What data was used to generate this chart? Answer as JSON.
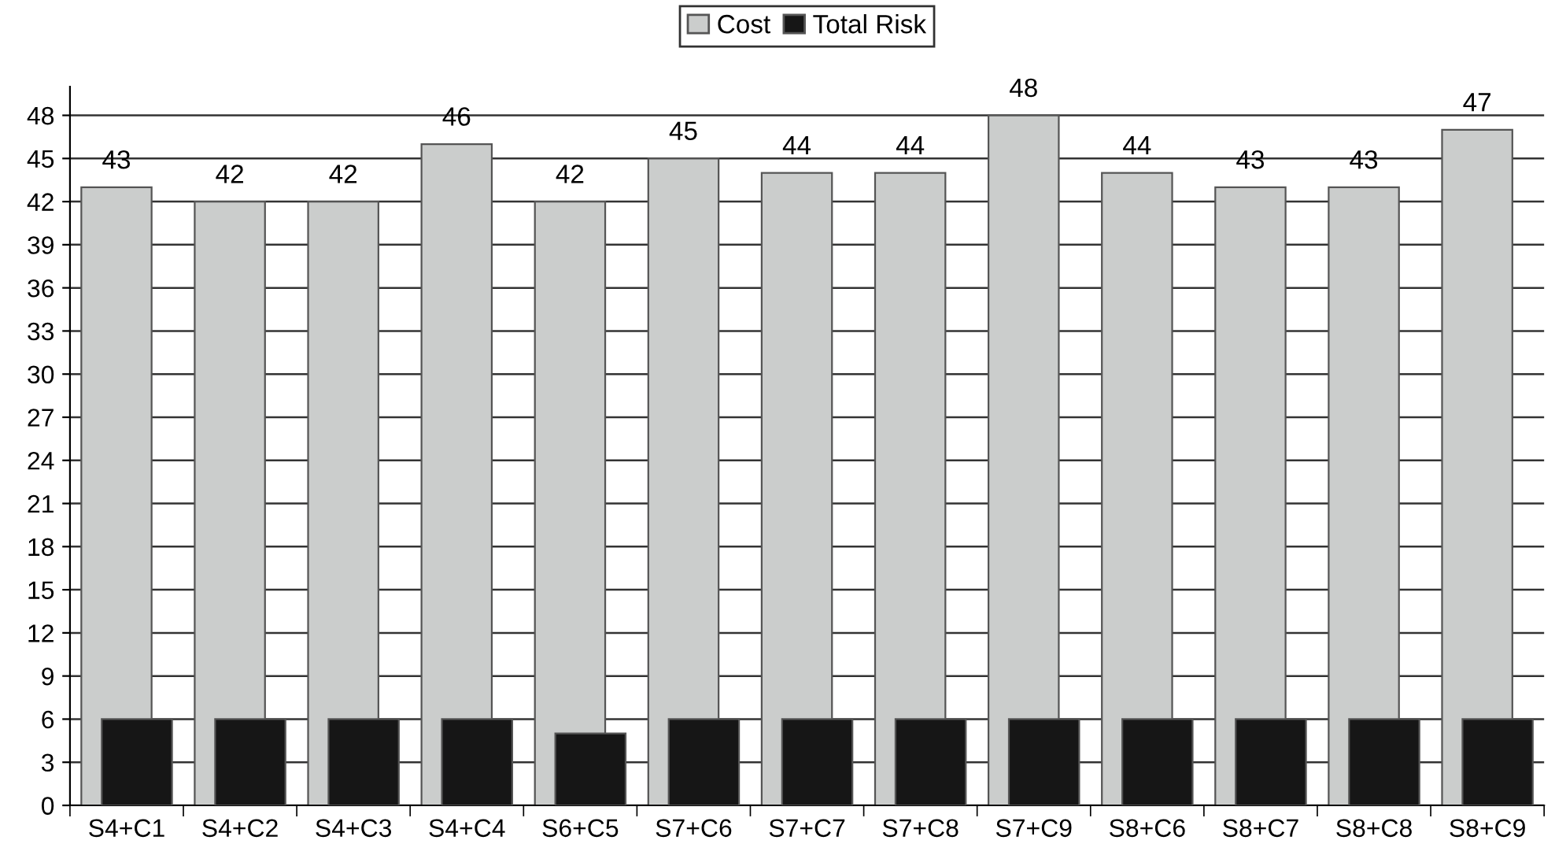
{
  "chart_data": {
    "type": "bar",
    "categories": [
      "S4+C1",
      "S4+C2",
      "S4+C3",
      "S4+C4",
      "S6+C5",
      "S7+C6",
      "S7+C7",
      "S7+C8",
      "S7+C9",
      "S8+C6",
      "S8+C7",
      "S8+C8",
      "S8+C9"
    ],
    "series": [
      {
        "name": "Cost",
        "color": "#cbcdcc",
        "values": [
          43,
          42,
          42,
          46,
          42,
          45,
          44,
          44,
          48,
          44,
          43,
          43,
          47
        ],
        "value_labels": [
          "43",
          "42",
          "42",
          "46",
          "42",
          "45",
          "44",
          "44",
          "48",
          "44",
          "43",
          "43",
          "47"
        ]
      },
      {
        "name": "Total Risk",
        "color": "#161616",
        "values": [
          6,
          6,
          6,
          6,
          5,
          6,
          6,
          6,
          6,
          6,
          6,
          6,
          6
        ]
      }
    ],
    "ylim": [
      0,
      50
    ],
    "yticks": [
      0,
      3,
      6,
      9,
      12,
      15,
      18,
      21,
      24,
      27,
      30,
      33,
      36,
      39,
      42,
      45,
      48
    ],
    "grid": "y",
    "legend": "top"
  }
}
